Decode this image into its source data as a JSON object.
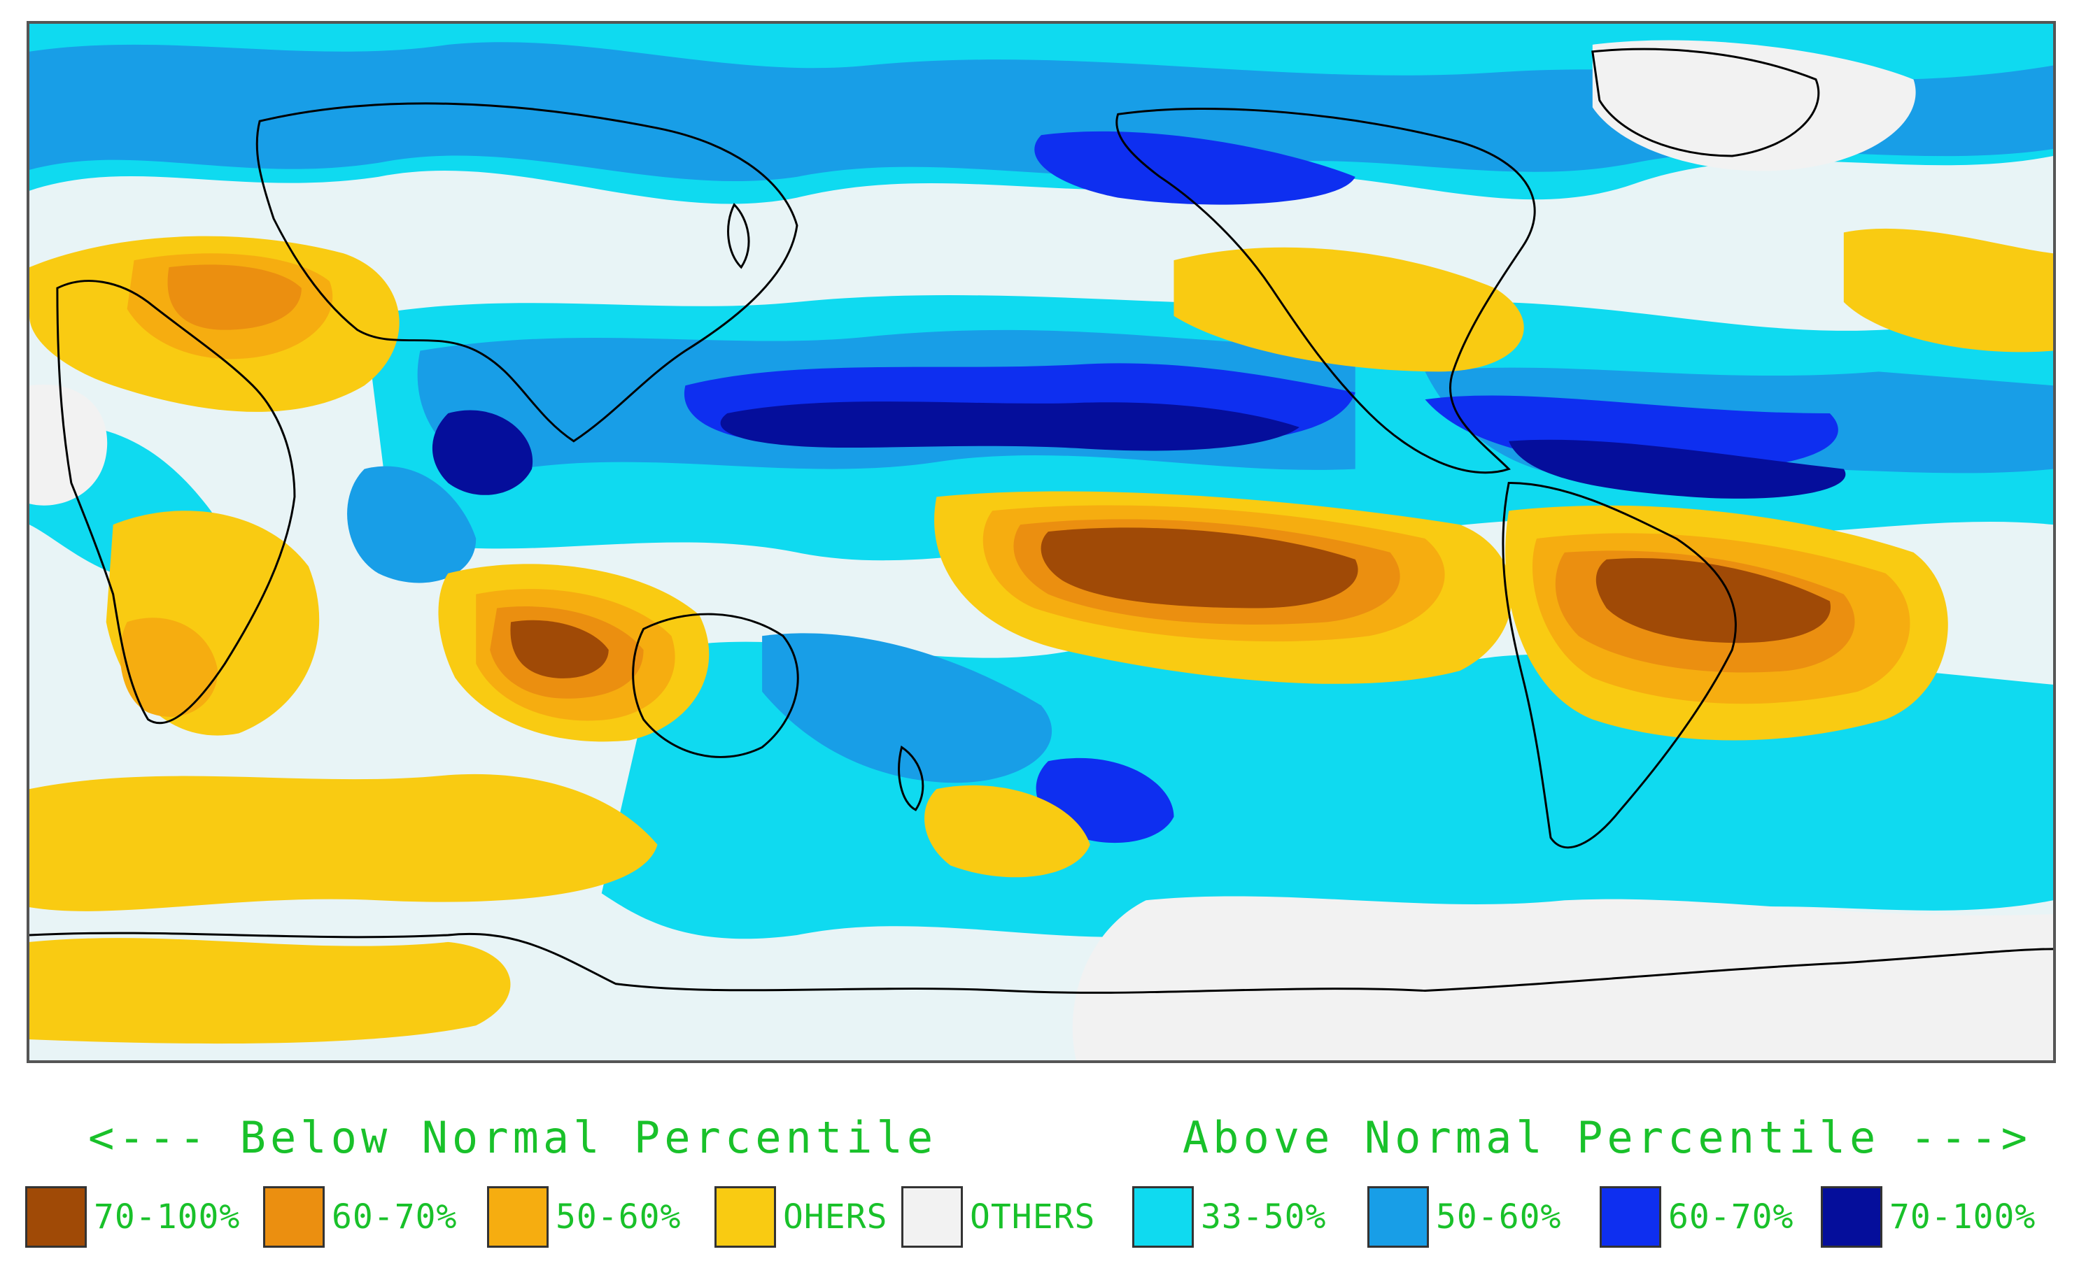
{
  "legend": {
    "below_title": "<--- Below Normal Percentile",
    "above_title": "Above Normal Percentile --->",
    "items": [
      {
        "label": "70-100%",
        "color": "#a04a06"
      },
      {
        "label": "60-70%",
        "color": "#eb8f10"
      },
      {
        "label": "50-60%",
        "color": "#f6ad10"
      },
      {
        "label": "OHERS",
        "color": "#f9cb12"
      },
      {
        "label": "OTHERS",
        "color": "#f2f2f2"
      },
      {
        "label": "33-50%",
        "color": "#0fdaf0"
      },
      {
        "label": "50-60%",
        "color": "#189ee7"
      },
      {
        "label": "60-70%",
        "color": "#0e2ff0"
      },
      {
        "label": "70-100%",
        "color": "#050e9b"
      }
    ]
  },
  "map": {
    "projection": "global equirectangular",
    "background_color": "#e8f4f6",
    "coastline_color": "#000000"
  }
}
